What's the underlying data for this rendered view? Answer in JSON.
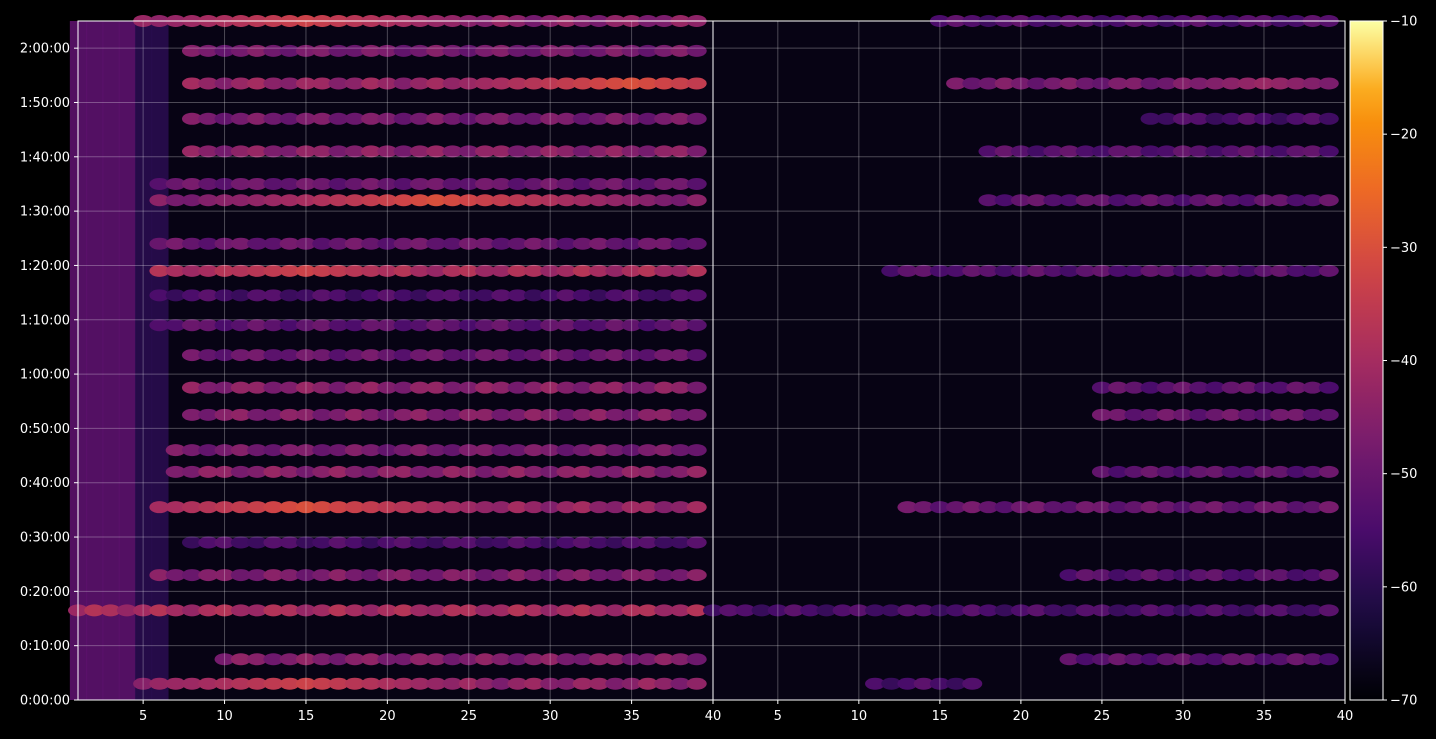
{
  "chart_data": [
    {
      "type": "heatmap",
      "title": "",
      "xlabel": "",
      "ylabel": "",
      "xlim": [
        1,
        40
      ],
      "x_ticks": [
        5,
        10,
        15,
        20,
        25,
        30,
        35,
        40
      ],
      "y_ticks": [
        "0:00:00",
        "0:10:00",
        "0:20:00",
        "0:30:00",
        "0:40:00",
        "0:50:00",
        "1:00:00",
        "1:10:00",
        "1:20:00",
        "1:30:00",
        "1:40:00",
        "1:50:00",
        "2:00:00"
      ],
      "y_range_minutes": [
        0,
        125
      ],
      "grid": true,
      "bands": [
        {
          "minute": 3,
          "x_from": 5,
          "x_to": 39,
          "level": -44,
          "peak_x": 15,
          "peak_level": -33
        },
        {
          "minute": 7.5,
          "x_from": 10,
          "x_to": 39,
          "level": -46
        },
        {
          "minute": 16.5,
          "x_from": 1,
          "x_to": 39,
          "level": -40
        },
        {
          "minute": 23,
          "x_from": 6,
          "x_to": 39,
          "level": -47
        },
        {
          "minute": 29,
          "x_from": 8,
          "x_to": 39,
          "level": -55
        },
        {
          "minute": 35.5,
          "x_from": 6,
          "x_to": 39,
          "level": -43,
          "peak_x": 15,
          "peak_level": -30
        },
        {
          "minute": 42,
          "x_from": 7,
          "x_to": 39,
          "level": -45
        },
        {
          "minute": 46,
          "x_from": 7,
          "x_to": 39,
          "level": -48
        },
        {
          "minute": 52.5,
          "x_from": 8,
          "x_to": 39,
          "level": -46
        },
        {
          "minute": 57.5,
          "x_from": 8,
          "x_to": 39,
          "level": -45
        },
        {
          "minute": 63.5,
          "x_from": 8,
          "x_to": 39,
          "level": -50
        },
        {
          "minute": 69,
          "x_from": 6,
          "x_to": 39,
          "level": -52
        },
        {
          "minute": 74.5,
          "x_from": 6,
          "x_to": 39,
          "level": -55
        },
        {
          "minute": 79,
          "x_from": 6,
          "x_to": 39,
          "level": -40,
          "peak_x": 15,
          "peak_level": -33
        },
        {
          "minute": 84,
          "x_from": 6,
          "x_to": 39,
          "level": -50
        },
        {
          "minute": 92,
          "x_from": 6,
          "x_to": 39,
          "level": -47,
          "peak_x": 23,
          "peak_level": -30
        },
        {
          "minute": 95,
          "x_from": 6,
          "x_to": 39,
          "level": -50
        },
        {
          "minute": 101,
          "x_from": 8,
          "x_to": 39,
          "level": -45
        },
        {
          "minute": 107,
          "x_from": 8,
          "x_to": 39,
          "level": -48
        },
        {
          "minute": 113.5,
          "x_from": 8,
          "x_to": 39,
          "level": -43,
          "peak_x": 35,
          "peak_level": -30
        },
        {
          "minute": 119.5,
          "x_from": 8,
          "x_to": 39,
          "level": -48
        },
        {
          "minute": 125,
          "x_from": 5,
          "x_to": 39,
          "level": -45,
          "peak_x": 15,
          "peak_level": -33
        }
      ]
    },
    {
      "type": "heatmap",
      "title": "",
      "xlabel": "",
      "ylabel": "",
      "xlim": [
        1,
        40
      ],
      "x_ticks": [
        5,
        10,
        15,
        20,
        25,
        30,
        35,
        40
      ],
      "y_range_minutes": [
        0,
        125
      ],
      "grid": true,
      "bands": [
        {
          "minute": 3,
          "x_from": 11,
          "x_to": 17,
          "level": -55
        },
        {
          "minute": 7.5,
          "x_from": 23,
          "x_to": 39,
          "level": -52
        },
        {
          "minute": 16.5,
          "x_from": 1,
          "x_to": 39,
          "level": -55
        },
        {
          "minute": 23,
          "x_from": 23,
          "x_to": 39,
          "level": -53
        },
        {
          "minute": 35.5,
          "x_from": 13,
          "x_to": 39,
          "level": -50
        },
        {
          "minute": 42,
          "x_from": 25,
          "x_to": 39,
          "level": -52
        },
        {
          "minute": 52.5,
          "x_from": 25,
          "x_to": 39,
          "level": -50
        },
        {
          "minute": 57.5,
          "x_from": 25,
          "x_to": 39,
          "level": -52
        },
        {
          "minute": 79,
          "x_from": 12,
          "x_to": 39,
          "level": -53
        },
        {
          "minute": 92,
          "x_from": 18,
          "x_to": 39,
          "level": -52
        },
        {
          "minute": 101,
          "x_from": 18,
          "x_to": 39,
          "level": -53
        },
        {
          "minute": 107,
          "x_from": 28,
          "x_to": 39,
          "level": -55
        },
        {
          "minute": 113.5,
          "x_from": 16,
          "x_to": 39,
          "level": -48,
          "peak_x": 35,
          "peak_level": -42
        },
        {
          "minute": 125,
          "x_from": 15,
          "x_to": 39,
          "level": -54
        }
      ]
    }
  ],
  "colorbar": {
    "cmap": "inferno",
    "range": [
      -70,
      -10
    ],
    "ticks": [
      "−10",
      "−20",
      "−30",
      "−40",
      "−50",
      "−60",
      "−70"
    ]
  }
}
